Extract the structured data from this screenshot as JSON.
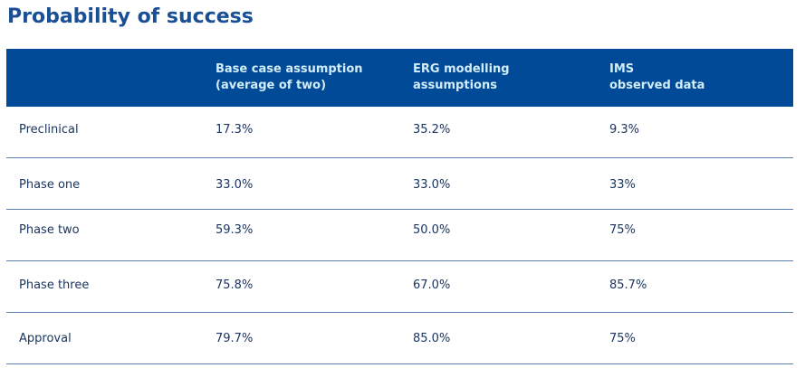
{
  "title": "Probability of success",
  "columns": [
    {
      "line1": "",
      "line2": ""
    },
    {
      "line1": "Base case assumption",
      "line2": "(average of two)"
    },
    {
      "line1": "ERG modelling",
      "line2": "assumptions"
    },
    {
      "line1": "IMS",
      "line2": "observed data"
    }
  ],
  "rows": [
    {
      "stage": "Preclinical",
      "base": "17.3%",
      "erg": "35.2%",
      "ims": "9.3%"
    },
    {
      "stage": "Phase one",
      "base": "33.0%",
      "erg": "33.0%",
      "ims": "33%"
    },
    {
      "stage": "Phase two",
      "base": "59.3%",
      "erg": "50.0%",
      "ims": "75%"
    },
    {
      "stage": "Phase three",
      "base": "75.8%",
      "erg": "67.0%",
      "ims": "85.7%"
    },
    {
      "stage": "Approval",
      "base": "79.7%",
      "erg": "85.0%",
      "ims": "75%"
    }
  ],
  "colors": {
    "header_bg": "#004a98",
    "header_text": "#d2ecf8",
    "title": "#1a4f96",
    "divider": "#5a7fb3"
  }
}
